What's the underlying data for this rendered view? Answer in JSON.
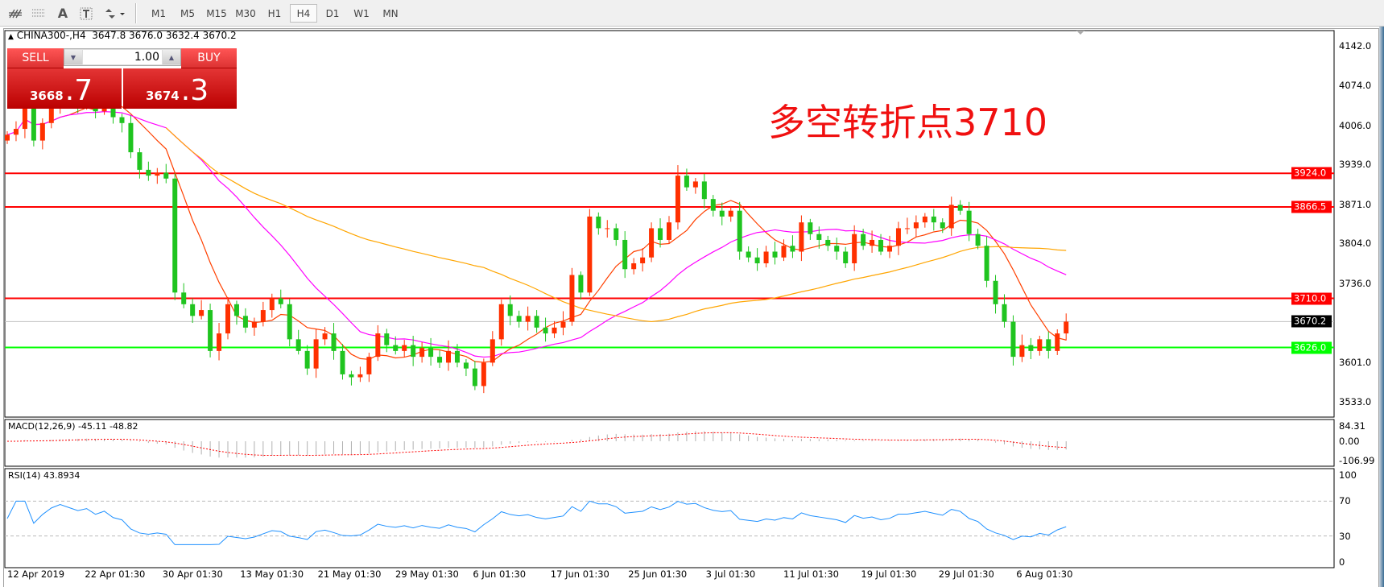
{
  "toolbar": {
    "tools": [
      "indicators-icon",
      "period-separators-icon",
      "text-tool",
      "text-label-tool",
      "arrows-tool"
    ],
    "text_tool_label": "A",
    "timeframes": [
      "M1",
      "M5",
      "M15",
      "M30",
      "H1",
      "H4",
      "D1",
      "W1",
      "MN"
    ],
    "active_timeframe": "H4"
  },
  "chart": {
    "header": "CHINA300-,H4  3647.8 3676.0 3632.4 3670.2",
    "symbol": "CHINA300-",
    "timeframe": "H4",
    "ohlc_last": {
      "open": 3647.8,
      "high": 3676.0,
      "low": 3632.4,
      "close": 3670.2
    },
    "annotation": "多空转折点3710",
    "price_axis": [
      "4142.0",
      "4074.0",
      "4006.0",
      "3939.0",
      "3871.0",
      "3804.0",
      "3736.0",
      "3601.0",
      "3533.0"
    ],
    "levels": [
      {
        "label": "3924.0",
        "value": 3924.0,
        "color": "#ff0000"
      },
      {
        "label": "3866.5",
        "value": 3866.5,
        "color": "#ff0000"
      },
      {
        "label": "3710.0",
        "value": 3710.0,
        "color": "#ff0000"
      },
      {
        "label": "3670.2",
        "value": 3670.2,
        "color": "#000000"
      },
      {
        "label": "3626.0",
        "value": 3626.0,
        "color": "#00ff00"
      }
    ],
    "dates": [
      "12 Apr 2019",
      "22 Apr 01:30",
      "30 Apr 01:30",
      "13 May 01:30",
      "21 May 01:30",
      "29 May 01:30",
      "6 Jun 01:30",
      "17 Jun 01:30",
      "25 Jun 01:30",
      "3 Jul 01:30",
      "11 Jul 01:30",
      "19 Jul 01:30",
      "29 Jul 01:30",
      "6 Aug 01:30"
    ],
    "colors": {
      "up": "#ff3000",
      "down": "#1fc41f",
      "ma_fast": "#ff4000",
      "ma_mid": "#ff00ff",
      "ma_slow": "#ffa500",
      "rsi": "#1e90ff",
      "macd_signal": "#ff0000",
      "macd_hist": "#b0b0b0"
    }
  },
  "trade": {
    "sell_label": "SELL",
    "buy_label": "BUY",
    "volume": "1.00",
    "bid_main": "3668",
    "bid_pip": ".7",
    "ask_main": "3674",
    "ask_pip": ".3"
  },
  "macd": {
    "label": "MACD(12,26,9) -45.11 -48.82",
    "axis": [
      "84.31",
      "0.00",
      "-106.99"
    ]
  },
  "rsi": {
    "label": "RSI(14) 43.8934",
    "axis": [
      "100",
      "70",
      "30",
      "0"
    ]
  },
  "chart_data": {
    "type": "candlestick",
    "closes": [
      3990,
      4000,
      4060,
      3980,
      4010,
      4040,
      4060,
      4050,
      4040,
      4050,
      4030,
      4045,
      4020,
      4010,
      3960,
      3930,
      3920,
      3925,
      3915,
      3720,
      3700,
      3680,
      3690,
      3620,
      3650,
      3700,
      3680,
      3660,
      3670,
      3690,
      3710,
      3700,
      3640,
      3620,
      3590,
      3640,
      3650,
      3620,
      3580,
      3575,
      3580,
      3610,
      3650,
      3630,
      3620,
      3630,
      3610,
      3625,
      3610,
      3600,
      3620,
      3600,
      3590,
      3560,
      3600,
      3640,
      3700,
      3680,
      3670,
      3680,
      3660,
      3650,
      3660,
      3670,
      3750,
      3720,
      3850,
      3830,
      3830,
      3810,
      3760,
      3770,
      3780,
      3830,
      3810,
      3840,
      3920,
      3900,
      3910,
      3880,
      3860,
      3850,
      3860,
      3790,
      3780,
      3770,
      3790,
      3780,
      3800,
      3790,
      3840,
      3820,
      3810,
      3800,
      3790,
      3770,
      3820,
      3800,
      3810,
      3790,
      3800,
      3830,
      3830,
      3840,
      3850,
      3840,
      3830,
      3870,
      3860,
      3820,
      3800,
      3740,
      3700,
      3670,
      3610,
      3630,
      3620,
      3640,
      3620,
      3650,
      3670.2
    ],
    "ylim": [
      3533,
      4142
    ]
  }
}
